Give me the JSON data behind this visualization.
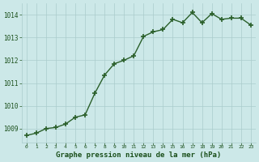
{
  "x": [
    0,
    1,
    2,
    3,
    4,
    5,
    6,
    7,
    8,
    9,
    10,
    11,
    12,
    13,
    14,
    15,
    16,
    17,
    18,
    19,
    20,
    21,
    22,
    23
  ],
  "y": [
    1008.7,
    1008.8,
    1009.0,
    1009.05,
    1009.2,
    1009.5,
    1009.6,
    1010.55,
    1011.35,
    1011.85,
    1012.0,
    1012.2,
    1013.05,
    1013.25,
    1013.35,
    1013.8,
    1013.65,
    1014.1,
    1013.65,
    1014.05,
    1013.8,
    1013.85,
    1013.85,
    1013.55
  ],
  "line_color": "#2a5f2a",
  "marker": "+",
  "marker_size": 4,
  "marker_lw": 1.2,
  "line_width": 1.0,
  "bg_color": "#cce8e8",
  "grid_color": "#aacccc",
  "xlabel": "Graphe pression niveau de la mer (hPa)",
  "xlabel_color": "#1a4f1a",
  "tick_color": "#1a4f1a",
  "ylim": [
    1008.4,
    1014.5
  ],
  "xlim": [
    -0.5,
    23.5
  ],
  "yticks": [
    1009,
    1010,
    1011,
    1012,
    1013,
    1014
  ],
  "xticks": [
    0,
    1,
    2,
    3,
    4,
    5,
    6,
    7,
    8,
    9,
    10,
    11,
    12,
    13,
    14,
    15,
    16,
    17,
    18,
    19,
    20,
    21,
    22,
    23
  ],
  "xticklabels": [
    "0",
    "1",
    "2",
    "3",
    "4",
    "5",
    "6",
    "7",
    "8",
    "9",
    "10",
    "11",
    "12",
    "13",
    "14",
    "15",
    "16",
    "17",
    "18",
    "19",
    "20",
    "21",
    "22",
    "23"
  ]
}
